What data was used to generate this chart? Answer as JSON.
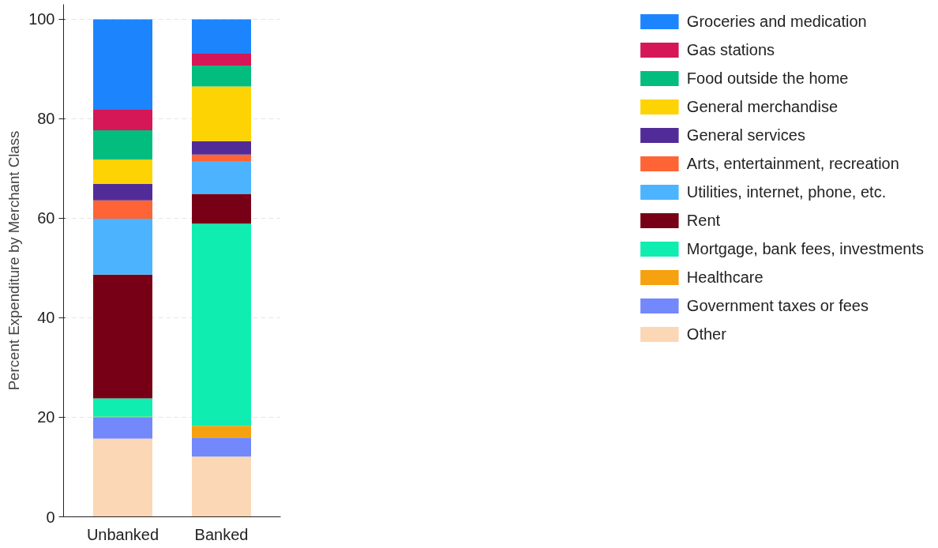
{
  "chart_data": {
    "type": "bar",
    "stacked": true,
    "ylabel": "Percent Expenditure by Merchant Class",
    "categories": [
      "Unbanked",
      "Banked"
    ],
    "ylim": [
      0,
      103
    ],
    "yticks": [
      0,
      20,
      40,
      60,
      80,
      100
    ],
    "grid": "y",
    "legend": "right",
    "series": [
      {
        "name": "Other",
        "color": "#fbd7b5",
        "values": [
          15.7,
          12.1
        ]
      },
      {
        "name": "Government taxes or fees",
        "color": "#7388fb",
        "values": [
          4.2,
          3.8
        ]
      },
      {
        "name": "Healthcare",
        "color": "#f6a10f",
        "values": [
          0.2,
          2.4
        ]
      },
      {
        "name": "Mortgage, bank fees, investments",
        "color": "#10edb0",
        "values": [
          3.7,
          40.6
        ]
      },
      {
        "name": "Rent",
        "color": "#780016",
        "values": [
          24.9,
          6.0
        ]
      },
      {
        "name": "Utilities, internet, phone, etc.",
        "color": "#4cb4fe",
        "values": [
          11.2,
          6.6
        ]
      },
      {
        "name": "Arts, entertainment, recreation",
        "color": "#fe6435",
        "values": [
          3.7,
          1.3
        ]
      },
      {
        "name": "General services",
        "color": "#512c98",
        "values": [
          3.3,
          2.7
        ]
      },
      {
        "name": "General merchandise",
        "color": "#fed303",
        "values": [
          4.9,
          11.0
        ]
      },
      {
        "name": "Food outside the home",
        "color": "#02bd7e",
        "values": [
          5.9,
          4.2
        ]
      },
      {
        "name": "Gas stations",
        "color": "#d51657",
        "values": [
          4.1,
          2.4
        ]
      },
      {
        "name": "Groceries and medication",
        "color": "#1c85fd",
        "values": [
          18.2,
          6.9
        ]
      }
    ]
  }
}
